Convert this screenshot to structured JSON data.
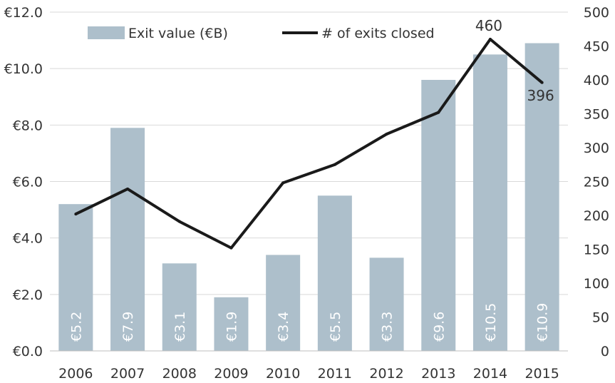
{
  "chart_data": {
    "type": "bar",
    "categories": [
      "2006",
      "2007",
      "2008",
      "2009",
      "2010",
      "2011",
      "2012",
      "2013",
      "2014",
      "2015"
    ],
    "series": [
      {
        "name": "Exit value (€B)",
        "type": "bar",
        "axis": "left",
        "values": [
          5.2,
          7.9,
          3.1,
          1.9,
          3.4,
          5.5,
          3.3,
          9.6,
          10.5,
          10.9
        ],
        "labels": [
          "€5.2",
          "€7.9",
          "€3.1",
          "€1.9",
          "€3.4",
          "€5.5",
          "€3.3",
          "€9.6",
          "€10.5",
          "€10.9"
        ]
      },
      {
        "name": "# of exits closed",
        "type": "line",
        "axis": "right",
        "values": [
          202,
          239,
          191,
          152,
          248,
          275,
          320,
          352,
          460,
          396
        ],
        "labels": [
          "",
          "",
          "",
          "",
          "",
          "",
          "",
          "",
          "460",
          "396"
        ]
      }
    ],
    "y_left": {
      "range": [
        0,
        12
      ],
      "ticks": [
        "€0.0",
        "€2.0",
        "€4.0",
        "€6.0",
        "€8.0",
        "€10.0",
        "€12.0"
      ]
    },
    "y_right": {
      "range": [
        0,
        500
      ],
      "ticks": [
        "0",
        "50",
        "100",
        "150",
        "200",
        "250",
        "300",
        "350",
        "400",
        "450",
        "500"
      ]
    },
    "grid": true,
    "legend_position": "top",
    "colors": {
      "bar": "#adbfcb",
      "line": "#1a1a1a",
      "grid": "#d9d9d9"
    }
  }
}
